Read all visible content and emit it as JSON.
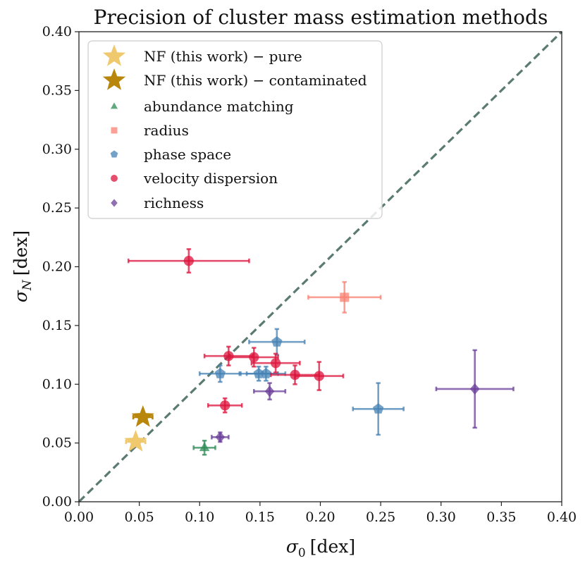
{
  "chart_data": {
    "type": "scatter",
    "title": "Precision of cluster mass estimation methods",
    "xlabel": {
      "symbol": "σ",
      "sub": "0",
      "unit": "[dex]"
    },
    "ylabel": {
      "symbol": "σ",
      "sub": "N",
      "unit": "[dex]"
    },
    "xlim": [
      0.0,
      0.4
    ],
    "ylim": [
      0.0,
      0.4
    ],
    "xticks": [
      0.0,
      0.05,
      0.1,
      0.15,
      0.2,
      0.25,
      0.3,
      0.35,
      0.4
    ],
    "yticks": [
      0.0,
      0.05,
      0.1,
      0.15,
      0.2,
      0.25,
      0.3,
      0.35,
      0.4
    ],
    "xtick_labels": [
      "0.00",
      "0.05",
      "0.10",
      "0.15",
      "0.20",
      "0.25",
      "0.30",
      "0.35",
      "0.40"
    ],
    "ytick_labels": [
      "0.00",
      "0.05",
      "0.10",
      "0.15",
      "0.20",
      "0.25",
      "0.30",
      "0.35",
      "0.40"
    ],
    "grid": false,
    "legend_position": "upper-left",
    "reference_line": {
      "style": "dashed",
      "from": [
        0.0,
        0.0
      ],
      "to": [
        0.4,
        0.4
      ],
      "color": "#5a7a72"
    },
    "series": [
      {
        "name": "NF (this work) − pure",
        "marker": "star",
        "color": "#f0c96e",
        "points": [
          {
            "x": 0.047,
            "y": 0.051,
            "xerr": 0.008,
            "yerr": 0.002
          }
        ]
      },
      {
        "name": "NF (this work) − contaminated",
        "marker": "star",
        "color": "#b8860b",
        "points": [
          {
            "x": 0.053,
            "y": 0.072,
            "xerr": 0.008,
            "yerr": 0.002
          }
        ]
      },
      {
        "name": "abundance matching",
        "marker": "triangle",
        "color": "#2e8b57",
        "points": [
          {
            "x": 0.104,
            "y": 0.046,
            "xerr": 0.009,
            "yerr": 0.006
          }
        ]
      },
      {
        "name": "radius",
        "marker": "square",
        "color": "#fa8072",
        "points": [
          {
            "x": 0.22,
            "y": 0.174,
            "xerr": 0.03,
            "yerr": 0.013
          }
        ]
      },
      {
        "name": "phase space",
        "marker": "pentagon",
        "color": "#4682b4",
        "points": [
          {
            "x": 0.164,
            "y": 0.136,
            "xerr": 0.023,
            "yerr": 0.011
          },
          {
            "x": 0.117,
            "y": 0.109,
            "xerr": 0.017,
            "yerr": 0.007
          },
          {
            "x": 0.149,
            "y": 0.109,
            "xerr": 0.016,
            "yerr": 0.006
          },
          {
            "x": 0.155,
            "y": 0.109,
            "xerr": 0.016,
            "yerr": 0.006
          },
          {
            "x": 0.248,
            "y": 0.079,
            "xerr": 0.021,
            "yerr": 0.022
          }
        ]
      },
      {
        "name": "velocity dispersion",
        "marker": "circle",
        "color": "#dc143c",
        "points": [
          {
            "x": 0.091,
            "y": 0.205,
            "xerr": 0.05,
            "yerr": 0.01
          },
          {
            "x": 0.124,
            "y": 0.124,
            "xerr": 0.02,
            "yerr": 0.008
          },
          {
            "x": 0.145,
            "y": 0.123,
            "xerr": 0.02,
            "yerr": 0.008
          },
          {
            "x": 0.163,
            "y": 0.118,
            "xerr": 0.02,
            "yerr": 0.008
          },
          {
            "x": 0.179,
            "y": 0.108,
            "xerr": 0.02,
            "yerr": 0.008
          },
          {
            "x": 0.199,
            "y": 0.107,
            "xerr": 0.02,
            "yerr": 0.012
          },
          {
            "x": 0.121,
            "y": 0.082,
            "xerr": 0.014,
            "yerr": 0.006
          }
        ]
      },
      {
        "name": "richness",
        "marker": "diamond",
        "color": "#6a3d9a",
        "points": [
          {
            "x": 0.328,
            "y": 0.096,
            "xerr": 0.032,
            "yerr": 0.033
          },
          {
            "x": 0.158,
            "y": 0.094,
            "xerr": 0.013,
            "yerr": 0.007
          },
          {
            "x": 0.117,
            "y": 0.055,
            "xerr": 0.007,
            "yerr": 0.004
          }
        ]
      }
    ]
  }
}
